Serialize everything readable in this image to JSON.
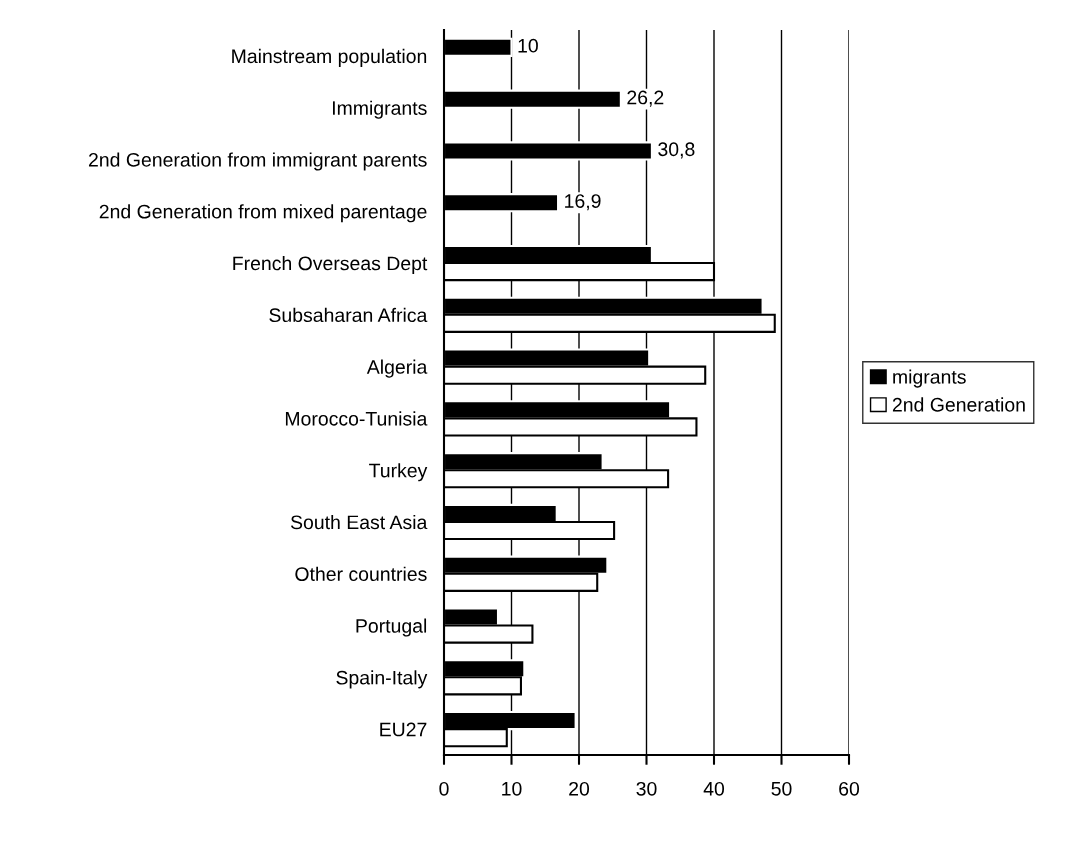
{
  "chart_data": {
    "type": "bar",
    "orientation": "horizontal",
    "categories": [
      "Mainstream population",
      "Immigrants",
      "2nd Generation from immigrant parents",
      "2nd Generation from mixed parentage",
      "French Overseas Dept",
      "Subsaharan Africa",
      "Algeria",
      "Morocco-Tunisia",
      "Turkey",
      "South East Asia",
      "Other countries",
      "Portugal",
      "Spain-Italy",
      "EU27"
    ],
    "series": [
      {
        "name": "migrants",
        "color": "#000000",
        "values": [
          10,
          26.2,
          30.8,
          16.9,
          30.8,
          47.2,
          30.4,
          33.5,
          23.5,
          16.7,
          24.2,
          8.0,
          11.9,
          19.5
        ],
        "value_labels": [
          "10",
          "26,2",
          "30,8",
          "16,9",
          null,
          null,
          null,
          null,
          null,
          null,
          null,
          null,
          null,
          null
        ]
      },
      {
        "name": "2nd Generation",
        "color": "#ffffff",
        "values": [
          null,
          null,
          null,
          null,
          40.0,
          49.0,
          38.7,
          37.4,
          33.2,
          25.2,
          22.7,
          13.1,
          11.4,
          9.3
        ]
      }
    ],
    "xlim": [
      0,
      60
    ],
    "xticks": [
      0,
      10,
      20,
      30,
      40,
      50,
      60
    ],
    "grid": "x",
    "legend": "right"
  }
}
